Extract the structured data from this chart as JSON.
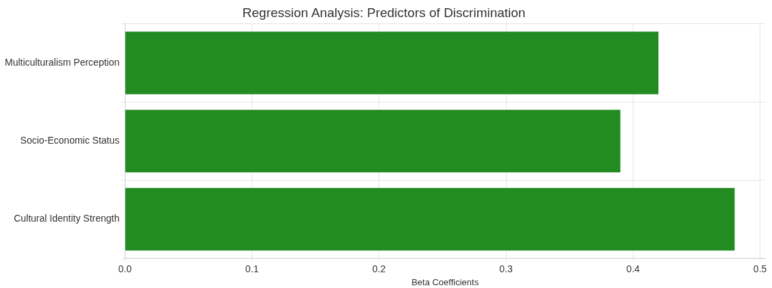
{
  "chart_data": {
    "type": "bar",
    "orientation": "horizontal",
    "title": "Regression Analysis: Predictors of Discrimination",
    "xlabel": "Beta Coefficients",
    "categories": [
      "Multiculturalism Perception",
      "Socio-Economic Status",
      "Cultural Identity Strength"
    ],
    "values": [
      0.42,
      0.39,
      0.48
    ],
    "color": "#228b22",
    "xlim": [
      0,
      0.504
    ],
    "xticks": [
      {
        "value": 0,
        "label": "0.0"
      },
      0.1,
      0.2,
      0.3,
      0.4,
      0.5
    ],
    "grid": true
  }
}
